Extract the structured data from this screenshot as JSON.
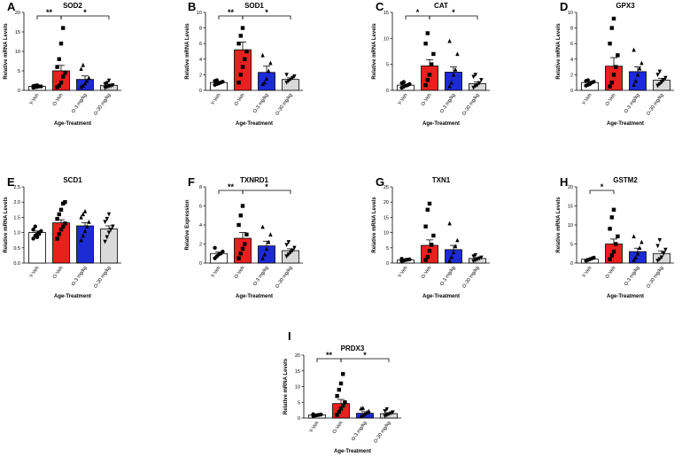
{
  "figure": {
    "categories": [
      "Y-Veh",
      "O-Veh",
      "O-3 mg/kg",
      "O-30 mg/kg"
    ],
    "xlabel": "Age-Treatment",
    "bar_colors": [
      "#ffffff",
      "#e8201e",
      "#1d2bd6",
      "#d9d9d9"
    ],
    "marker_shapes": [
      "circle",
      "square",
      "triangle",
      "triangle-down"
    ]
  },
  "chart_data": [
    {
      "type": "bar",
      "letter": "A",
      "title": "SOD2",
      "ylabel": "Relative mRNA Levels",
      "ylim": [
        0,
        20
      ],
      "yticks": [
        0,
        5,
        10,
        15,
        20
      ],
      "categories": [
        "Y-Veh",
        "O-Veh",
        "O-3 mg/kg",
        "O-30 mg/kg"
      ],
      "values": [
        1.0,
        5.0,
        2.8,
        1.3
      ],
      "errors": [
        0.2,
        1.4,
        0.9,
        0.3
      ],
      "points": [
        [
          0.7,
          0.8,
          0.9,
          1.0,
          1.0,
          1.1,
          1.2,
          1.3
        ],
        [
          0.8,
          1.2,
          2.0,
          3.5,
          4.5,
          6.0,
          8.0,
          12.0,
          16.0
        ],
        [
          0.9,
          1.2,
          1.8,
          2.5,
          3.2,
          5.5,
          6.5
        ],
        [
          0.6,
          0.8,
          1.0,
          1.1,
          1.3,
          1.6,
          1.9,
          2.5
        ]
      ],
      "significance": [
        {
          "from": 0,
          "to": 1,
          "label": "**"
        },
        {
          "from": 1,
          "to": 3,
          "label": "*"
        }
      ]
    },
    {
      "type": "bar",
      "letter": "B",
      "title": "SOD1",
      "ylabel": "Relative mRNA Levels",
      "ylim": [
        0,
        10
      ],
      "yticks": [
        0,
        2,
        4,
        6,
        8,
        10
      ],
      "categories": [
        "Y-Veh",
        "O-Veh",
        "O-3 mg/kg",
        "O-30 mg/kg"
      ],
      "values": [
        1.0,
        5.2,
        2.3,
        1.4
      ],
      "errors": [
        0.15,
        1.0,
        0.8,
        0.2
      ],
      "points": [
        [
          0.7,
          0.8,
          0.9,
          1.0,
          1.1,
          1.2,
          1.3
        ],
        [
          1.0,
          2.0,
          3.0,
          4.0,
          5.0,
          6.0,
          7.0,
          8.0
        ],
        [
          0.8,
          1.0,
          1.5,
          2.5,
          3.5,
          4.5
        ],
        [
          1.0,
          1.2,
          1.4,
          1.6,
          1.8,
          2.0
        ]
      ],
      "significance": [
        {
          "from": 0,
          "to": 1,
          "label": "**"
        },
        {
          "from": 1,
          "to": 3,
          "label": "*"
        }
      ]
    },
    {
      "type": "bar",
      "letter": "C",
      "title": "CAT",
      "ylabel": "Relative mRNA Levels",
      "ylim": [
        0,
        15
      ],
      "yticks": [
        0,
        5,
        10,
        15
      ],
      "categories": [
        "Y-Veh",
        "O-Veh",
        "O-3 mg/kg",
        "O-30 mg/kg"
      ],
      "values": [
        1.0,
        4.7,
        3.5,
        1.3
      ],
      "errors": [
        0.2,
        1.2,
        1.0,
        0.3
      ],
      "points": [
        [
          0.5,
          0.7,
          0.9,
          1.0,
          1.2,
          1.4,
          1.6
        ],
        [
          1.0,
          2.0,
          3.0,
          5.0,
          7.0,
          9.0,
          11.0
        ],
        [
          0.8,
          1.5,
          3.0,
          4.0,
          7.0,
          9.5
        ],
        [
          0.5,
          0.8,
          1.0,
          1.4,
          2.0,
          2.6,
          3.0
        ]
      ],
      "significance": [
        {
          "from": 0,
          "to": 1,
          "label": "*"
        },
        {
          "from": 1,
          "to": 3,
          "label": "*"
        }
      ]
    },
    {
      "type": "bar",
      "letter": "D",
      "title": "GPX3",
      "ylabel": "Relative mRNA Levels",
      "ylim": [
        0,
        10
      ],
      "yticks": [
        0,
        2,
        4,
        6,
        8,
        10
      ],
      "categories": [
        "Y-Veh",
        "O-Veh",
        "O-3 mg/kg",
        "O-30 mg/kg"
      ],
      "values": [
        1.0,
        3.1,
        2.4,
        1.3
      ],
      "errors": [
        0.15,
        1.1,
        0.6,
        0.25
      ],
      "points": [
        [
          0.6,
          0.7,
          0.8,
          1.0,
          1.1,
          1.2,
          1.3
        ],
        [
          0.5,
          1.0,
          2.0,
          3.0,
          4.5,
          6.0,
          8.0,
          9.2
        ],
        [
          0.7,
          1.2,
          2.0,
          2.8,
          3.5,
          5.2
        ],
        [
          0.6,
          0.8,
          1.0,
          1.3,
          1.6,
          2.0,
          2.4
        ]
      ],
      "significance": []
    },
    {
      "type": "bar",
      "letter": "E",
      "title": "SCD1",
      "ylabel": "Relative mRNA Levels",
      "ylim": [
        0,
        2.5
      ],
      "yticks": [
        0.0,
        0.5,
        1.0,
        1.5,
        2.0,
        2.5
      ],
      "categories": [
        "Y-Veh",
        "O-Veh",
        "O-3 mg/kg",
        "O-30 mg/kg"
      ],
      "values": [
        1.0,
        1.32,
        1.22,
        1.12
      ],
      "errors": [
        0.05,
        0.1,
        0.1,
        0.1
      ],
      "points": [
        [
          0.8,
          0.9,
          0.95,
          1.0,
          1.05,
          1.1,
          1.2,
          0.85,
          0.95
        ],
        [
          0.8,
          0.95,
          1.1,
          1.2,
          1.3,
          1.45,
          1.6,
          1.75,
          1.95,
          2.0
        ],
        [
          0.75,
          0.9,
          1.05,
          1.2,
          1.35,
          1.5,
          1.6,
          1.7
        ],
        [
          0.7,
          0.85,
          1.0,
          1.1,
          1.2,
          1.35,
          1.45,
          1.6
        ]
      ],
      "significance": []
    },
    {
      "type": "bar",
      "letter": "F",
      "title": "TXNRD1",
      "ylabel": "Relative  Expression",
      "ylim": [
        0,
        8
      ],
      "yticks": [
        0,
        2,
        4,
        6,
        8
      ],
      "categories": [
        "Y-Veh",
        "O-Veh",
        "O-3 mg/kg",
        "O-30 mg/kg"
      ],
      "values": [
        1.0,
        2.6,
        1.8,
        1.3
      ],
      "errors": [
        0.15,
        0.6,
        0.5,
        0.2
      ],
      "points": [
        [
          0.5,
          0.7,
          0.9,
          1.0,
          1.2,
          1.6
        ],
        [
          0.5,
          1.0,
          1.5,
          2.0,
          3.0,
          4.0,
          5.0,
          6.0
        ],
        [
          0.5,
          0.9,
          1.5,
          2.2,
          3.0,
          3.8
        ],
        [
          0.7,
          0.9,
          1.1,
          1.3,
          1.6,
          1.9,
          2.2
        ]
      ],
      "significance": [
        {
          "from": 0,
          "to": 1,
          "label": "**"
        },
        {
          "from": 1,
          "to": 3,
          "label": "*"
        }
      ]
    },
    {
      "type": "bar",
      "letter": "G",
      "title": "TXN1",
      "ylabel": "Relative mRNA Levels",
      "ylim": [
        0,
        25
      ],
      "yticks": [
        0,
        5,
        10,
        15,
        20,
        25
      ],
      "categories": [
        "Y-Veh",
        "O-Veh",
        "O-3 mg/kg",
        "O-30 mg/kg"
      ],
      "values": [
        1.0,
        5.8,
        4.4,
        1.5
      ],
      "errors": [
        0.2,
        1.8,
        1.4,
        0.3
      ],
      "points": [
        [
          0.6,
          0.8,
          1.0,
          1.1,
          1.2,
          1.4
        ],
        [
          1.0,
          2.0,
          4.0,
          6.0,
          9.0,
          12.0,
          17.5,
          19.5
        ],
        [
          0.8,
          2.0,
          3.5,
          5.5,
          7.5,
          13.0
        ],
        [
          0.6,
          0.9,
          1.2,
          1.5,
          1.8,
          2.2,
          2.6
        ]
      ],
      "significance": []
    },
    {
      "type": "bar",
      "letter": "H",
      "title": "GSTM2",
      "ylabel": "Relative mRNA Levels",
      "ylim": [
        0,
        20
      ],
      "yticks": [
        0,
        5,
        10,
        15,
        20
      ],
      "categories": [
        "Y-Veh",
        "O-Veh",
        "O-3 mg/kg",
        "O-30 mg/kg"
      ],
      "values": [
        1.0,
        5.0,
        3.0,
        2.5
      ],
      "errors": [
        0.2,
        1.3,
        0.9,
        0.7
      ],
      "points": [
        [
          0.6,
          0.8,
          1.0,
          1.2,
          1.4
        ],
        [
          1.0,
          2.0,
          3.0,
          5.0,
          7.0,
          9.0,
          12.0,
          14.0
        ],
        [
          0.8,
          1.5,
          2.5,
          4.0,
          5.5,
          7.0
        ],
        [
          0.6,
          1.0,
          1.5,
          2.5,
          3.5,
          4.5,
          6.0
        ]
      ],
      "significance": [
        {
          "from": 0,
          "to": 1,
          "label": "*"
        }
      ]
    },
    {
      "type": "bar",
      "letter": "I",
      "title": "PRDX3",
      "ylabel": "Relative mRNA Levels",
      "ylim": [
        0,
        20
      ],
      "yticks": [
        0,
        5,
        10,
        15,
        20
      ],
      "categories": [
        "Y-Veh",
        "O-Veh",
        "O-3 mg/kg",
        "O-30 mg/kg"
      ],
      "values": [
        1.0,
        4.6,
        1.5,
        1.4
      ],
      "errors": [
        0.15,
        1.3,
        0.5,
        0.3
      ],
      "points": [
        [
          0.7,
          0.8,
          0.9,
          1.0,
          1.1,
          1.2
        ],
        [
          1.0,
          2.0,
          3.0,
          4.0,
          5.0,
          7.0,
          9.0,
          11.0,
          14.0
        ],
        [
          0.5,
          0.9,
          1.3,
          1.8,
          2.2,
          3.0,
          3.2
        ],
        [
          0.6,
          0.9,
          1.2,
          1.5,
          1.8,
          2.2,
          2.8
        ]
      ],
      "significance": [
        {
          "from": 0,
          "to": 1,
          "label": "**"
        },
        {
          "from": 1,
          "to": 3,
          "label": "*"
        }
      ]
    }
  ]
}
